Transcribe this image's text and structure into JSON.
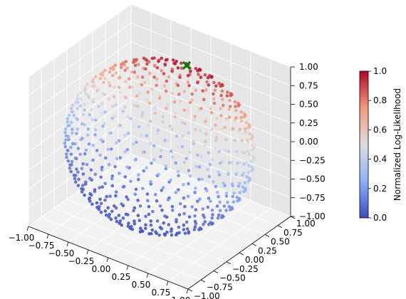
{
  "chart_data": {
    "type": "scatter",
    "projection": "3d",
    "title": "",
    "xlabel": "",
    "ylabel": "",
    "zlabel": "",
    "xlim": [
      -1.0,
      1.0
    ],
    "ylim": [
      -1.0,
      1.0
    ],
    "zlim": [
      -1.0,
      1.0
    ],
    "x_ticks": [
      "−1.00",
      "−0.75",
      "−0.50",
      "−0.25",
      "0.00",
      "0.25",
      "0.50",
      "0.75",
      "1.00"
    ],
    "y_ticks": [
      "−1.00",
      "−0.75",
      "−0.50",
      "−0.25",
      "0.00",
      "0.25",
      "0.50",
      "0.75",
      "1.00"
    ],
    "z_ticks": [
      "−1.00",
      "−0.75",
      "−0.50",
      "−0.25",
      "0.00",
      "0.25",
      "0.50",
      "0.75",
      "1.00"
    ],
    "tick_values": [
      -1.0,
      -0.75,
      -0.5,
      -0.25,
      0.0,
      0.25,
      0.5,
      0.75,
      1.0
    ],
    "grid": true,
    "description_points": "Samples on the surface of the unit sphere, colored by normalized log-likelihood (coolwarm colormap); likelihood increases toward the upper region around the marked best point.",
    "n_points": 700,
    "likelihood_peak_direction": [
      0.05,
      0.45,
      0.89
    ],
    "best_point": {
      "x": 0.05,
      "y": 0.45,
      "z": 0.89,
      "marker": "x",
      "color": "#008000"
    },
    "colormap": "coolwarm",
    "colorbar": {
      "label": "Normalized Log-Likelihood",
      "min": 0.0,
      "max": 1.0,
      "ticks": [
        "0.0",
        "0.2",
        "0.4",
        "0.6",
        "0.8",
        "1.0"
      ],
      "tick_values": [
        0.0,
        0.2,
        0.4,
        0.6,
        0.8,
        1.0
      ],
      "color_low": "#3b4cc0",
      "color_mid": "#dddddd",
      "color_high": "#b40426"
    }
  }
}
